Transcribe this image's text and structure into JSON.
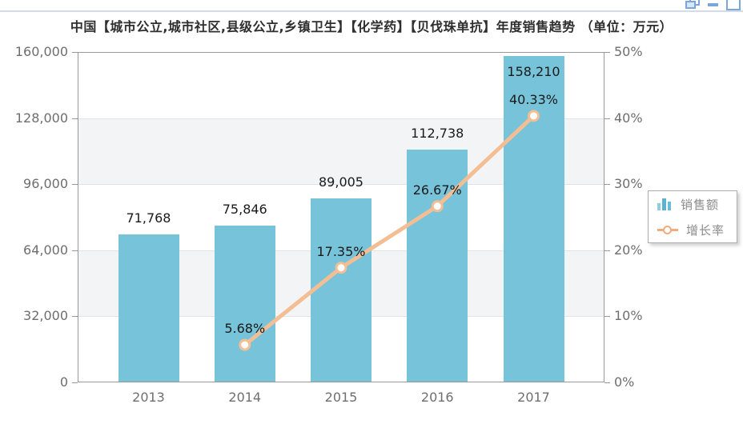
{
  "title": "中国【城市公立,城市社区,县级公立,乡镇卫生】【化学药】【贝伐珠单抗】年度销售趋势 （单位：万元）",
  "window": {
    "icons": [
      "restore",
      "minimize",
      "maximize"
    ]
  },
  "chart_data": {
    "type": "bar",
    "subtype": "bar+line combo, dual y-axis",
    "categories": [
      "2013",
      "2014",
      "2015",
      "2016",
      "2017"
    ],
    "series": [
      {
        "name": "销售额",
        "type": "bar",
        "axis": "left",
        "color": "#76C3DA",
        "values": [
          71768,
          75846,
          89005,
          112738,
          158210
        ],
        "labels": [
          "71,768",
          "75,846",
          "89,005",
          "112,738",
          "158,210"
        ]
      },
      {
        "name": "增长率",
        "type": "line",
        "axis": "right",
        "color": "#F4BE94",
        "marker": "open-circle",
        "values": [
          null,
          5.68,
          17.35,
          26.67,
          40.33
        ],
        "labels": [
          null,
          "5.68%",
          "17.35%",
          "26.67%",
          "40.33%"
        ]
      }
    ],
    "left_axis": {
      "min": 0,
      "max": 160000,
      "ticks": [
        "0",
        "32,000",
        "64,000",
        "96,000",
        "128,000",
        "160,000"
      ]
    },
    "right_axis": {
      "min": 0,
      "max": 50,
      "ticks": [
        "0%",
        "10%",
        "20%",
        "30%",
        "40%",
        "50%"
      ]
    },
    "legend": {
      "position": "right",
      "items": [
        "销售额",
        "增长率"
      ]
    },
    "grid": "horizontal gridlines with alternating white/gray bands",
    "colors": {
      "bar": "#76C3DA",
      "line": "#F4BE94",
      "marker_fill": "#FFFFFF",
      "axis_text": "#6E6E6E",
      "data_label": "#1A1A1A",
      "band_gray": "#F3F4F5",
      "frame": "#999999",
      "divider": "#D3DCE9",
      "window_icon_blue": "#7AA6DD"
    }
  }
}
